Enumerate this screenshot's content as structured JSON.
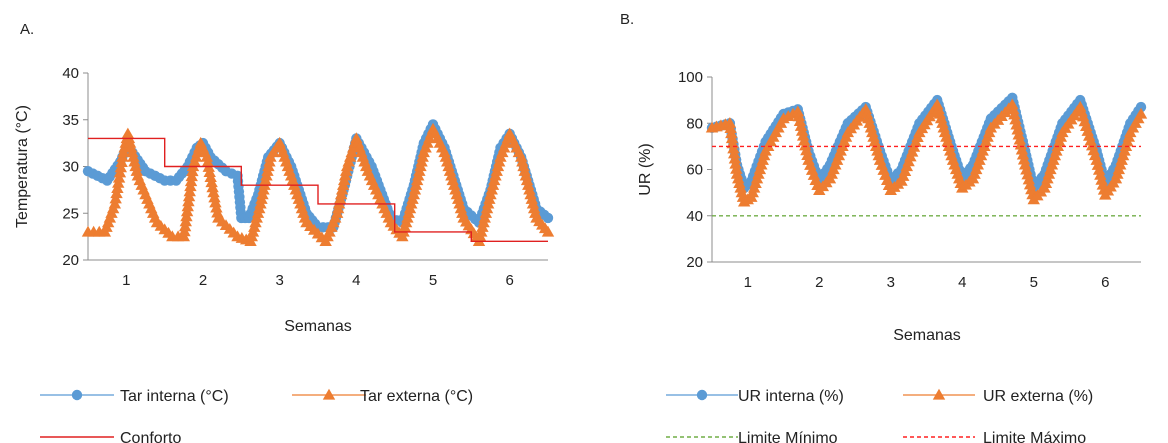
{
  "chart_data": [
    {
      "panel": "A.",
      "type": "line",
      "xlabel": "Semanas",
      "ylabel": "Temperatura (°C)",
      "ylim": [
        20,
        40
      ],
      "xlim": [
        0.5,
        6.5
      ],
      "yticks": [
        20,
        25,
        30,
        35,
        40
      ],
      "xticks": [
        1,
        2,
        3,
        4,
        5,
        6
      ],
      "grid": false,
      "legend": "bottom",
      "series": [
        {
          "name": "Tar interna (°C)",
          "marker": "circle",
          "color": "#5b9bd5",
          "x": [
            0.5,
            0.75,
            0.92,
            1.0,
            1.08,
            1.25,
            1.5,
            1.65,
            1.8,
            1.92,
            2.0,
            2.1,
            2.3,
            2.45,
            2.5,
            2.6,
            2.72,
            2.85,
            3.0,
            3.15,
            3.35,
            3.5,
            3.7,
            3.85,
            4.0,
            4.2,
            4.45,
            4.6,
            4.75,
            4.88,
            5.0,
            5.15,
            5.4,
            5.6,
            5.75,
            5.88,
            6.0,
            6.15,
            6.35,
            6.5
          ],
          "y": [
            29.5,
            28.5,
            30.5,
            32,
            31.5,
            29.5,
            28.5,
            28.5,
            30,
            32,
            32.5,
            31,
            29.5,
            29,
            24.5,
            24.5,
            27,
            31,
            32.5,
            30,
            25,
            23.5,
            23.5,
            28,
            33,
            30,
            24.5,
            24,
            28,
            32.5,
            34.5,
            32,
            25.5,
            24,
            27.5,
            32,
            33.5,
            31,
            25.5,
            24.5
          ]
        },
        {
          "name": "Tar externa (°C)",
          "marker": "triangle",
          "color": "#ed7d31",
          "x": [
            0.5,
            0.72,
            0.85,
            0.95,
            1.02,
            1.15,
            1.4,
            1.6,
            1.75,
            1.87,
            1.97,
            2.05,
            2.2,
            2.45,
            2.62,
            2.75,
            2.88,
            3.0,
            3.15,
            3.35,
            3.6,
            3.75,
            3.88,
            4.0,
            4.15,
            4.45,
            4.6,
            4.75,
            4.88,
            5.0,
            5.15,
            5.4,
            5.6,
            5.75,
            5.88,
            6.0,
            6.15,
            6.35,
            6.5
          ],
          "y": [
            23,
            23,
            26,
            31,
            33.5,
            29,
            24,
            22.5,
            22.5,
            30,
            32.5,
            31,
            24.5,
            22.5,
            22,
            26,
            31,
            32.5,
            29,
            24,
            22,
            25,
            30,
            33,
            29.5,
            24,
            22.5,
            27,
            31.5,
            34,
            31.5,
            24.5,
            22,
            27,
            31,
            33.5,
            31,
            24.5,
            23
          ]
        },
        {
          "name": "Conforto",
          "marker": "none",
          "color": "#e02020",
          "step": true,
          "x": [
            0.5,
            1.5,
            1.5,
            2.5,
            2.5,
            3.5,
            3.5,
            4.5,
            4.5,
            5.5,
            5.5,
            6.5
          ],
          "y": [
            33,
            33,
            30,
            30,
            28,
            28,
            26,
            26,
            23,
            23,
            22,
            22
          ]
        }
      ]
    },
    {
      "panel": "B.",
      "type": "line",
      "xlabel": "Semanas",
      "ylabel": "UR  (%)",
      "ylim": [
        20,
        100
      ],
      "xlim": [
        0.5,
        6.5
      ],
      "yticks": [
        20,
        40,
        60,
        80,
        100
      ],
      "xticks": [
        1,
        2,
        3,
        4,
        5,
        6
      ],
      "grid": false,
      "legend": "bottom",
      "series": [
        {
          "name": "UR interna (%)",
          "marker": "circle",
          "color": "#5b9bd5",
          "x": [
            0.5,
            0.75,
            0.85,
            0.95,
            1.05,
            1.25,
            1.5,
            1.7,
            1.85,
            2.0,
            2.15,
            2.4,
            2.65,
            2.85,
            3.0,
            3.15,
            3.4,
            3.65,
            3.85,
            4.0,
            4.15,
            4.4,
            4.7,
            4.88,
            5.0,
            5.15,
            5.4,
            5.65,
            5.88,
            6.0,
            6.15,
            6.35,
            6.5
          ],
          "y": [
            78,
            80,
            62,
            52,
            55,
            72,
            84,
            86,
            68,
            55,
            62,
            80,
            87,
            68,
            55,
            60,
            80,
            90,
            70,
            56,
            62,
            82,
            91,
            68,
            52,
            58,
            80,
            90,
            68,
            54,
            62,
            80,
            87
          ]
        },
        {
          "name": "UR  externa (%)",
          "marker": "triangle",
          "color": "#ed7d31",
          "x": [
            0.5,
            0.75,
            0.85,
            0.95,
            1.05,
            1.25,
            1.5,
            1.7,
            1.85,
            2.0,
            2.15,
            2.4,
            2.65,
            2.85,
            3.0,
            3.15,
            3.4,
            3.65,
            3.85,
            4.0,
            4.15,
            4.4,
            4.7,
            4.88,
            5.0,
            5.15,
            5.4,
            5.65,
            5.88,
            6.0,
            6.15,
            6.35,
            6.5
          ],
          "y": [
            78,
            80,
            58,
            46,
            48,
            68,
            82,
            85,
            64,
            51,
            56,
            76,
            86,
            64,
            51,
            55,
            76,
            88,
            66,
            52,
            56,
            78,
            88,
            62,
            47,
            52,
            76,
            87,
            64,
            49,
            56,
            76,
            84
          ]
        },
        {
          "name": "Limite Mínimo",
          "marker": "none",
          "color": "#70ad47",
          "dashed": true,
          "x": [
            0.5,
            6.5
          ],
          "y": [
            40,
            40
          ]
        },
        {
          "name": "Limite Máximo",
          "marker": "none",
          "color": "#ff2020",
          "dashed": true,
          "x": [
            0.5,
            6.5
          ],
          "y": [
            70,
            70
          ]
        }
      ]
    }
  ]
}
